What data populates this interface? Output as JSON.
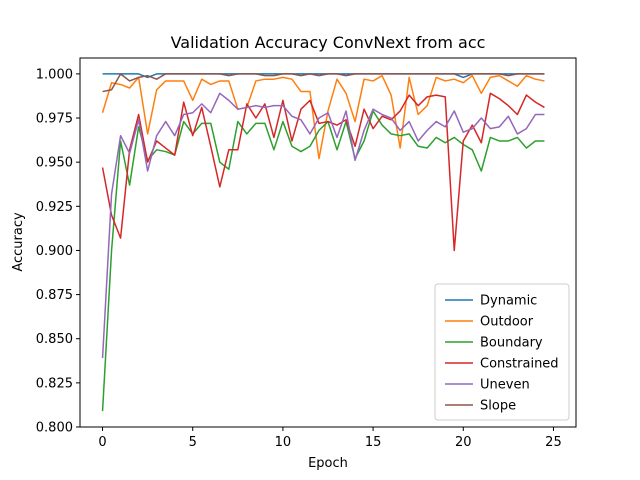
{
  "chart_data": {
    "type": "line",
    "title": "Validation Accuracy ConvNext from acc",
    "xlabel": "Epoch",
    "ylabel": "Accuracy",
    "xlim": [
      -1.25,
      26.25
    ],
    "ylim": [
      0.8,
      1.009
    ],
    "x_ticks": [
      0,
      5,
      10,
      15,
      20,
      25
    ],
    "y_ticks": [
      0.8,
      0.825,
      0.85,
      0.875,
      0.9,
      0.925,
      0.95,
      0.975,
      1.0
    ],
    "y_tick_labels": [
      "0.800",
      "0.825",
      "0.850",
      "0.875",
      "0.900",
      "0.925",
      "0.950",
      "0.975",
      "1.000"
    ],
    "grid": false,
    "legend": "lower-right",
    "x": [
      0,
      0.5,
      1,
      1.5,
      2,
      2.5,
      3,
      3.5,
      4,
      4.5,
      5,
      5.5,
      6,
      6.5,
      7,
      7.5,
      8,
      8.5,
      9,
      9.5,
      10,
      10.5,
      11,
      11.5,
      12,
      12.5,
      13,
      13.5,
      14,
      14.5,
      15,
      15.5,
      16,
      16.5,
      17,
      17.5,
      18,
      18.5,
      19,
      19.5,
      20,
      20.5,
      21,
      21.5,
      22,
      22.5,
      23,
      23.5,
      24,
      24.5
    ],
    "series": [
      {
        "name": "Dynamic",
        "color": "#1f77b4",
        "values": [
          1.0,
          1.0,
          1.0,
          1.0,
          1.0,
          0.998,
          1.0,
          1.0,
          1.0,
          1.0,
          1.0,
          1.0,
          1.0,
          1.0,
          1.0,
          1.0,
          1.0,
          1.0,
          1.0,
          1.0,
          1.0,
          1.0,
          1.0,
          1.0,
          1.0,
          1.0,
          1.0,
          1.0,
          1.0,
          1.0,
          1.0,
          1.0,
          1.0,
          1.0,
          1.0,
          1.0,
          1.0,
          1.0,
          1.0,
          1.0,
          0.998,
          1.0,
          1.0,
          1.0,
          1.0,
          1.0,
          1.0,
          1.0,
          1.0,
          1.0
        ]
      },
      {
        "name": "Outdoor",
        "color": "#ff7f0e",
        "values": [
          0.978,
          0.995,
          0.994,
          0.992,
          0.998,
          0.966,
          0.991,
          0.996,
          0.996,
          0.996,
          0.985,
          0.997,
          0.994,
          0.996,
          0.996,
          0.98,
          0.981,
          0.996,
          0.997,
          0.997,
          0.998,
          0.997,
          0.99,
          0.99,
          0.952,
          0.979,
          0.997,
          0.989,
          0.973,
          0.997,
          0.996,
          0.999,
          0.988,
          0.958,
          0.998,
          0.977,
          0.982,
          0.998,
          0.996,
          0.997,
          0.995,
          0.999,
          0.989,
          0.998,
          0.999,
          0.996,
          0.993,
          0.999,
          0.997,
          0.996
        ]
      },
      {
        "name": "Boundary",
        "color": "#2ca02c",
        "values": [
          0.809,
          0.9,
          0.962,
          0.937,
          0.97,
          0.951,
          0.957,
          0.956,
          0.954,
          0.973,
          0.966,
          0.972,
          0.972,
          0.95,
          0.946,
          0.973,
          0.966,
          0.972,
          0.972,
          0.957,
          0.973,
          0.959,
          0.956,
          0.959,
          0.968,
          0.973,
          0.957,
          0.973,
          0.952,
          0.962,
          0.979,
          0.971,
          0.966,
          0.965,
          0.966,
          0.959,
          0.958,
          0.964,
          0.961,
          0.964,
          0.96,
          0.957,
          0.945,
          0.964,
          0.962,
          0.962,
          0.964,
          0.958,
          0.962,
          0.962
        ]
      },
      {
        "name": "Constrained",
        "color": "#d62728",
        "values": [
          0.947,
          0.92,
          0.907,
          0.957,
          0.977,
          0.95,
          0.962,
          0.958,
          0.954,
          0.984,
          0.965,
          0.981,
          0.959,
          0.936,
          0.957,
          0.957,
          0.983,
          0.975,
          0.983,
          0.964,
          0.985,
          0.962,
          0.98,
          0.985,
          0.972,
          0.973,
          0.971,
          0.974,
          0.959,
          0.98,
          0.969,
          0.976,
          0.974,
          0.979,
          0.988,
          0.982,
          0.987,
          0.988,
          0.987,
          0.9,
          0.962,
          0.971,
          0.961,
          0.989,
          0.986,
          0.982,
          0.977,
          0.988,
          0.984,
          0.981
        ]
      },
      {
        "name": "Uneven",
        "color": "#9467bd",
        "values": [
          0.839,
          0.932,
          0.965,
          0.955,
          0.974,
          0.945,
          0.965,
          0.973,
          0.965,
          0.977,
          0.978,
          0.983,
          0.978,
          0.989,
          0.985,
          0.98,
          0.981,
          0.982,
          0.981,
          0.982,
          0.982,
          0.976,
          0.974,
          0.966,
          0.975,
          0.978,
          0.964,
          0.979,
          0.951,
          0.968,
          0.98,
          0.977,
          0.975,
          0.968,
          0.973,
          0.962,
          0.968,
          0.973,
          0.97,
          0.979,
          0.967,
          0.969,
          0.975,
          0.969,
          0.97,
          0.976,
          0.966,
          0.969,
          0.977,
          0.977
        ]
      },
      {
        "name": "Slope",
        "color": "#8c564b",
        "values": [
          0.99,
          0.991,
          1.0,
          0.996,
          0.998,
          0.999,
          0.997,
          1.0,
          1.0,
          1.0,
          1.0,
          1.0,
          1.0,
          1.0,
          0.999,
          1.0,
          1.0,
          1.0,
          0.999,
          0.999,
          1.0,
          1.0,
          0.999,
          1.0,
          0.999,
          1.0,
          1.0,
          0.999,
          1.0,
          1.0,
          1.0,
          1.0,
          1.0,
          1.0,
          1.0,
          1.0,
          1.0,
          1.0,
          1.0,
          1.0,
          1.0,
          1.0,
          1.0,
          1.0,
          1.0,
          0.999,
          1.0,
          1.0,
          1.0,
          1.0
        ]
      }
    ]
  }
}
